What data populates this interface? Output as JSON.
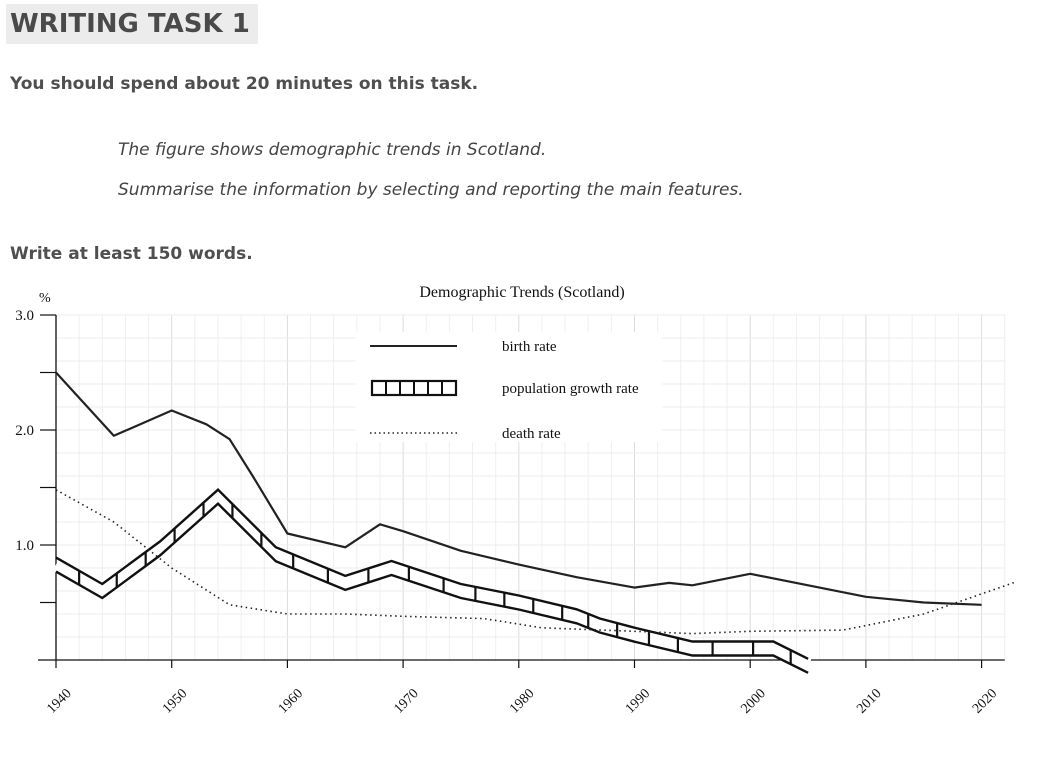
{
  "page": {
    "heading": "WRITING TASK 1",
    "instruction": "You should spend about 20 minutes on this task.",
    "prompt_line1": "The figure shows demographic trends in Scotland.",
    "prompt_line2": "Summarise the information by selecting and reporting the main features.",
    "word_count": "Write at least 150 words."
  },
  "chart_data": {
    "type": "line",
    "title": "Demographic Trends (Scotland)",
    "ylabel": "%",
    "xlabel": "",
    "xlim": [
      1940,
      2023
    ],
    "ylim": [
      0,
      3.0
    ],
    "x_ticks": [
      "1940",
      "1950",
      "1960",
      "1970",
      "1980",
      "1990",
      "2000",
      "2010",
      "2020"
    ],
    "y_ticks": [
      "1.0",
      "2.0",
      "3.0"
    ],
    "grid": true,
    "legend_position": "top-center",
    "series": [
      {
        "name": "birth rate",
        "style": "solid",
        "x": [
          1940,
          1945,
          1950,
          1953,
          1955,
          1957,
          1960,
          1965,
          1968,
          1970,
          1975,
          1980,
          1985,
          1990,
          1993,
          1995,
          2000,
          2005,
          2010,
          2015,
          2020
        ],
        "y": [
          2.5,
          1.95,
          2.17,
          2.05,
          1.92,
          1.6,
          1.1,
          0.98,
          1.18,
          1.12,
          0.95,
          0.83,
          0.72,
          0.63,
          0.67,
          0.65,
          0.75,
          0.65,
          0.55,
          0.5,
          0.48
        ]
      },
      {
        "name": "population growth rate",
        "style": "hatched-band",
        "x": [
          1940,
          1944,
          1949,
          1954,
          1959,
          1965,
          1969,
          1975,
          1980,
          1985,
          1987,
          1990,
          1995,
          2002,
          2005
        ],
        "y": [
          0.83,
          0.6,
          0.97,
          1.42,
          0.92,
          0.67,
          0.8,
          0.6,
          0.5,
          0.38,
          0.3,
          0.22,
          0.1,
          0.1,
          -0.05
        ]
      },
      {
        "name": "death rate",
        "style": "dotted",
        "x": [
          1940,
          1945,
          1950,
          1955,
          1960,
          1965,
          1970,
          1977,
          1982,
          1990,
          1995,
          2000,
          2008,
          2015,
          2023
        ],
        "y": [
          1.48,
          1.2,
          0.8,
          0.48,
          0.4,
          0.4,
          0.38,
          0.36,
          0.28,
          0.25,
          0.23,
          0.25,
          0.26,
          0.4,
          0.68
        ]
      }
    ]
  }
}
